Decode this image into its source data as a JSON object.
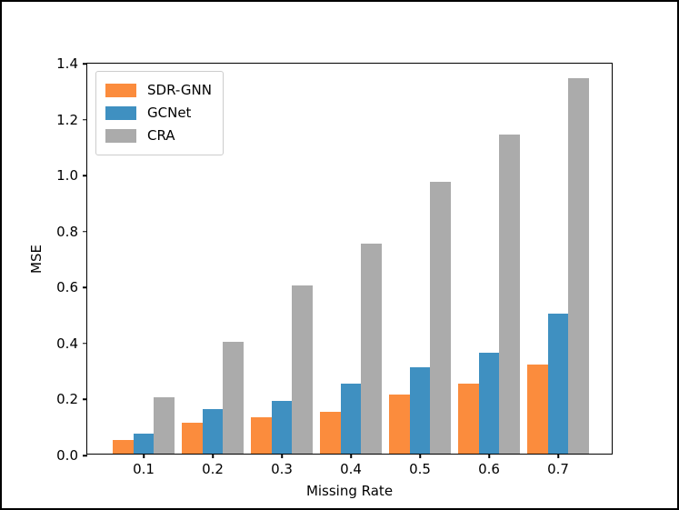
{
  "chart_data": {
    "type": "bar",
    "title": "",
    "xlabel": "Missing Rate",
    "ylabel": "MSE",
    "categories": [
      "0.1",
      "0.2",
      "0.3",
      "0.4",
      "0.5",
      "0.6",
      "0.7"
    ],
    "series": [
      {
        "name": "SDR-GNN",
        "color": "#fb8c3d",
        "values": [
          0.05,
          0.11,
          0.13,
          0.15,
          0.21,
          0.25,
          0.32
        ]
      },
      {
        "name": "GCNet",
        "color": "#3f90c1",
        "values": [
          0.07,
          0.16,
          0.19,
          0.25,
          0.31,
          0.36,
          0.5
        ]
      },
      {
        "name": "CRA",
        "color": "#ababab",
        "values": [
          0.2,
          0.4,
          0.6,
          0.75,
          0.97,
          1.14,
          1.34
        ]
      }
    ],
    "ylim": [
      0,
      1.4
    ],
    "yticks": [
      "0.0",
      "0.2",
      "0.4",
      "0.6",
      "0.8",
      "1.0",
      "1.2",
      "1.4"
    ],
    "grid": false,
    "legend_position": "upper left",
    "colors": {
      "axis": "#000000",
      "legend_border": "#cccccc",
      "background": "#ffffff"
    }
  }
}
